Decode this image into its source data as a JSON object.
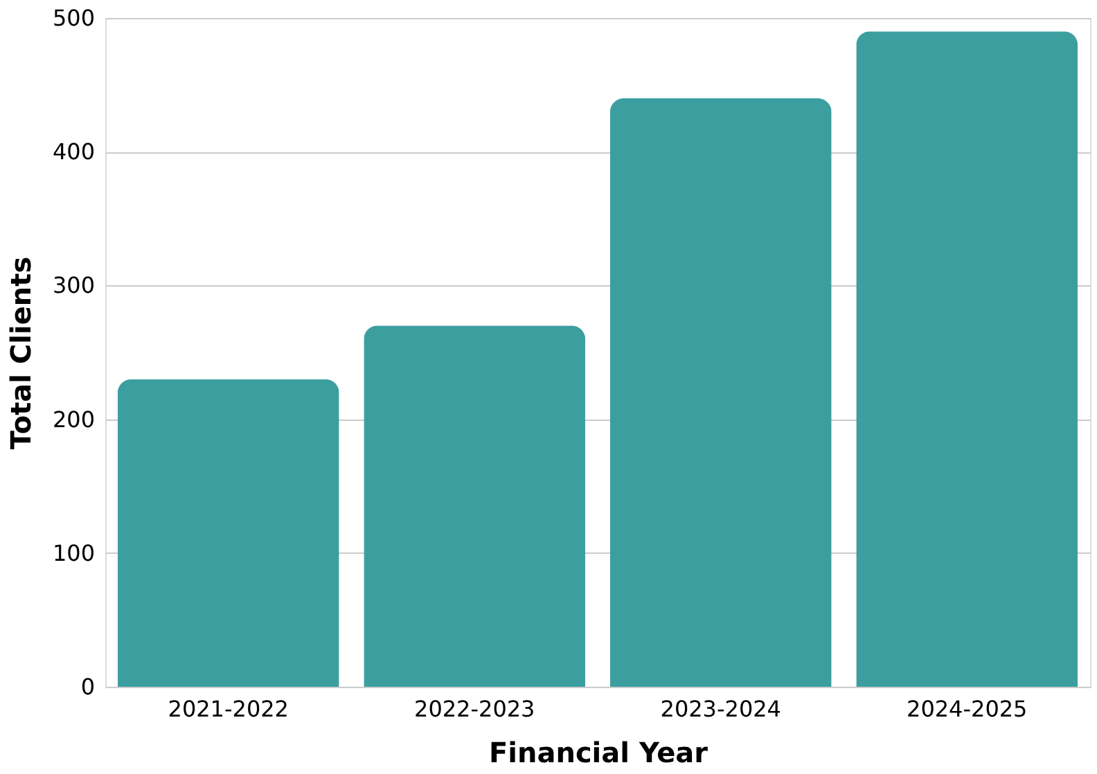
{
  "chart_data": {
    "type": "bar",
    "xlabel": "Financial Year",
    "ylabel": "Total Clients",
    "categories": [
      "2021-2022",
      "2022-2023",
      "2023-2024",
      "2024-2025"
    ],
    "values": [
      230,
      270,
      440,
      490
    ],
    "color": "#3d9ea0",
    "ylim": [
      0,
      500
    ],
    "yticks": [
      0,
      100,
      200,
      300,
      400,
      500
    ],
    "grid": "y"
  }
}
